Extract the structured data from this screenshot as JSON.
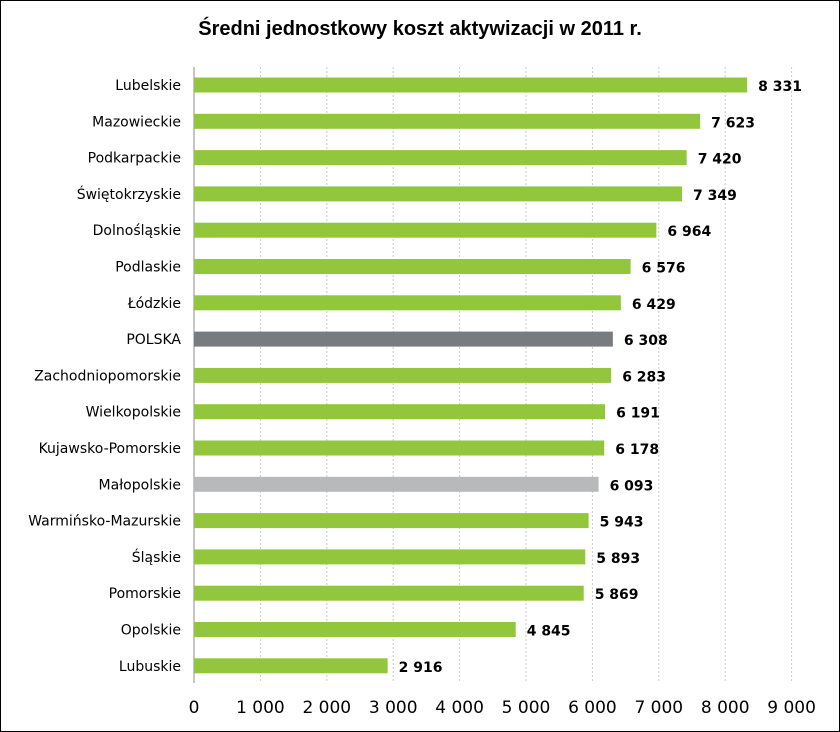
{
  "chart_data": {
    "type": "bar",
    "orientation": "horizontal",
    "title": "Średni jednostkowy koszt aktywizacji w 2011 r.",
    "categories": [
      "Lubelskie",
      "Mazowieckie",
      "Podkarpackie",
      "Świętokrzyskie",
      "Dolnośląskie",
      "Podlaskie",
      "Łódzkie",
      "POLSKA",
      "Zachodniopomorskie",
      "Wielkopolskie",
      "Kujawsko-Pomorskie",
      "Małopolskie",
      "Warmińsko-Mazurskie",
      "Śląskie",
      "Pomorskie",
      "Opolskie",
      "Lubuskie"
    ],
    "values": [
      8331,
      7623,
      7420,
      7349,
      6964,
      6576,
      6429,
      6308,
      6283,
      6191,
      6178,
      6093,
      5943,
      5893,
      5869,
      4845,
      2916
    ],
    "value_labels": [
      "8 331",
      "7 623",
      "7 420",
      "7 349",
      "6 964",
      "6 576",
      "6 429",
      "6 308",
      "6 283",
      "6 191",
      "6 178",
      "6 093",
      "5 943",
      "5 893",
      "5 869",
      "4 845",
      "2 916"
    ],
    "bar_colors": [
      "#92c73d",
      "#92c73d",
      "#92c73d",
      "#92c73d",
      "#92c73d",
      "#92c73d",
      "#92c73d",
      "#777c80",
      "#92c73d",
      "#92c73d",
      "#92c73d",
      "#b8b9bb",
      "#92c73d",
      "#92c73d",
      "#92c73d",
      "#92c73d",
      "#92c73d"
    ],
    "xlim": [
      0,
      9000
    ],
    "x_ticks": [
      0,
      1000,
      2000,
      3000,
      4000,
      5000,
      6000,
      7000,
      8000,
      9000
    ],
    "x_tick_labels": [
      "0",
      "1 000",
      "2 000",
      "3 000",
      "4 000",
      "5 000",
      "6 000",
      "7 000",
      "8 000",
      "9 000"
    ],
    "grid": "vertical",
    "xlabel": "",
    "ylabel": ""
  }
}
